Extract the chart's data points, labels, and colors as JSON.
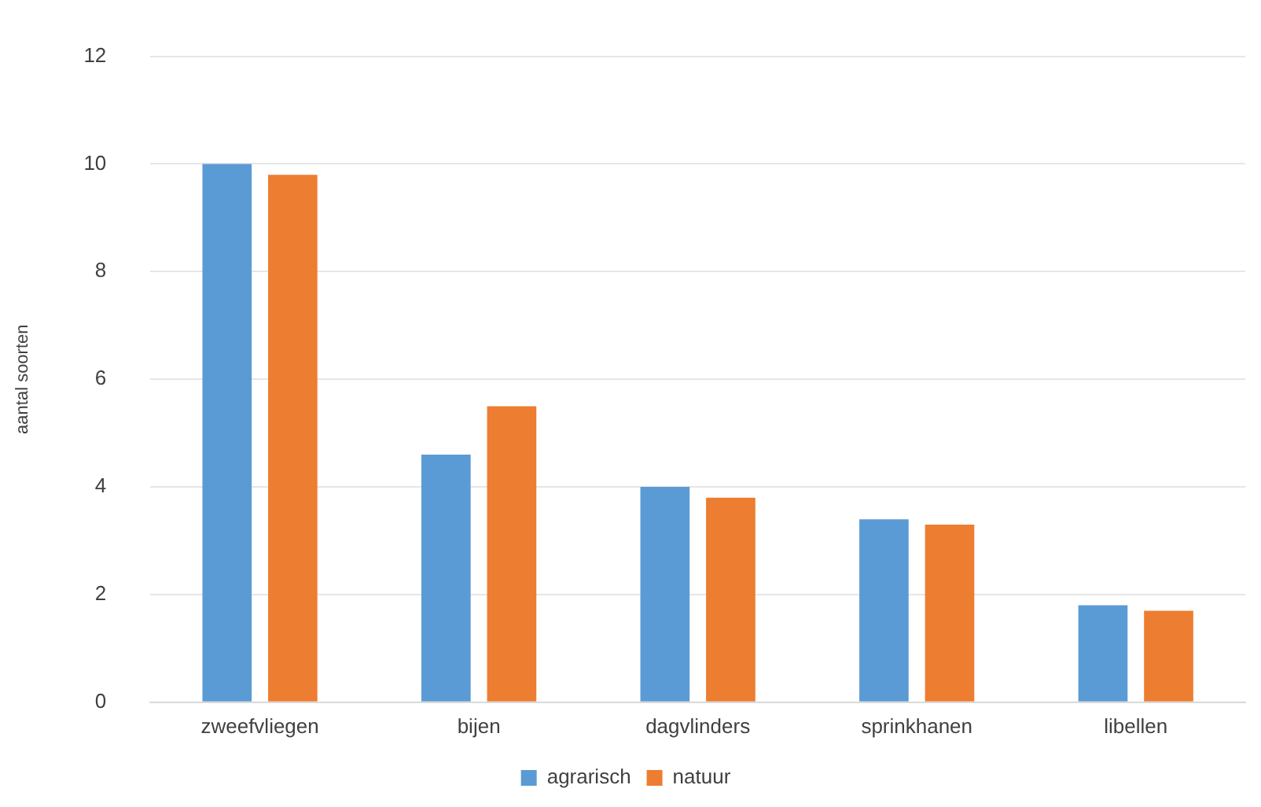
{
  "chart_data": {
    "type": "bar",
    "ylabel": "aantal soorten",
    "categories": [
      "zweefvliegen",
      "bijen",
      "dagvlinders",
      "sprinkhanen",
      "libellen"
    ],
    "series": [
      {
        "name": "agrarisch",
        "color": "#5b9bd5",
        "values": [
          10.0,
          4.6,
          4.0,
          3.4,
          1.8
        ]
      },
      {
        "name": "natuur",
        "color": "#ed7d31",
        "values": [
          9.8,
          5.5,
          3.8,
          3.3,
          1.7
        ]
      }
    ],
    "ylim": [
      0,
      12
    ],
    "yticks": [
      0,
      2,
      4,
      6,
      8,
      10,
      12
    ],
    "grid": "y",
    "legend": "bottom"
  }
}
